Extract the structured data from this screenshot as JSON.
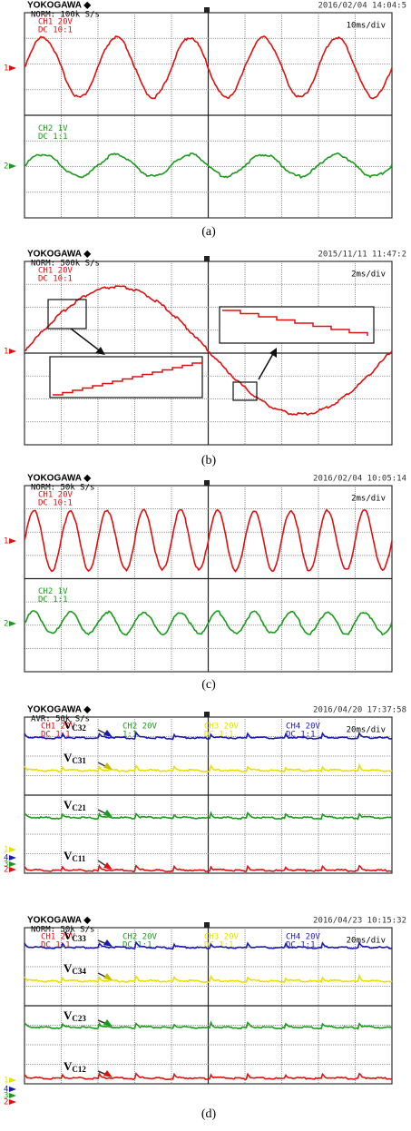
{
  "screens": [
    {
      "brand": "YOKOGAWA ◆",
      "mode": "NORM: 100k S/s",
      "timestamp": "2016/02/04 14:04:5",
      "timebase": "10ms/div",
      "channels": [
        {
          "name": "CH1 20V",
          "coupling": "DC 10:1"
        },
        {
          "name": "CH2 1V",
          "coupling": "DC 1:1"
        }
      ],
      "markers": [
        "1",
        "2"
      ],
      "caption": "(a)"
    },
    {
      "brand": "YOKOGAWA ◆",
      "mode": "NORM: 500k S/s",
      "timestamp": "2015/11/11 11:47:2",
      "timebase": "2ms/div",
      "channels": [
        {
          "name": "CH1 20V",
          "coupling": "DC 10:1"
        }
      ],
      "markers": [
        "1"
      ],
      "caption": "(b)"
    },
    {
      "brand": "YOKOGAWA ◆",
      "mode": "NORM: 50k S/s",
      "timestamp": "2016/02/04 10:05:14",
      "timebase": "2ms/div",
      "channels": [
        {
          "name": "CH1 20V",
          "coupling": "DC 10:1"
        },
        {
          "name": "CH2 1V",
          "coupling": "DC 1:1"
        }
      ],
      "markers": [
        "1",
        "2"
      ],
      "caption": "(c)"
    },
    {
      "brand": "YOKOGAWA ◆",
      "mode": "AVR: 50k S/s",
      "timestamp": "2016/04/20 17:37:58",
      "timebase": "20ms/div",
      "channels": [
        {
          "name": "CH1 20V",
          "coupling": "DC 1:1"
        },
        {
          "name": "CH2 20V",
          "coupling": "1:1"
        },
        {
          "name": "CH3 20V",
          "coupling": "DC 1:1"
        },
        {
          "name": "CH4 20V",
          "coupling": "DC 1:1"
        }
      ],
      "markers": [
        "4",
        "3",
        "2",
        "1"
      ],
      "labels": [
        {
          "main": "V",
          "sub": "C32"
        },
        {
          "main": "V",
          "sub": "C31"
        },
        {
          "main": "V",
          "sub": "C21"
        },
        {
          "main": "V",
          "sub": "C11"
        }
      ]
    },
    {
      "brand": "YOKOGAWA ◆",
      "mode": "NORM: 50k S/s",
      "timestamp": "2016/04/23 10:15:32",
      "timebase": "20ms/div",
      "channels": [
        {
          "name": "CH1 20V",
          "coupling": "DC 1:1"
        },
        {
          "name": "CH2 20V",
          "coupling": "DC 1:1"
        },
        {
          "name": "CH3 20V",
          "coupling": "DC 1:1"
        },
        {
          "name": "CH4 20V",
          "coupling": "DC 1:1"
        }
      ],
      "markers": [
        "4",
        "3",
        "2",
        "1"
      ],
      "labels": [
        {
          "main": "V",
          "sub": "C33"
        },
        {
          "main": "V",
          "sub": "C34"
        },
        {
          "main": "V",
          "sub": "C23"
        },
        {
          "main": "V",
          "sub": "C12"
        }
      ],
      "caption": "(d)"
    }
  ]
}
